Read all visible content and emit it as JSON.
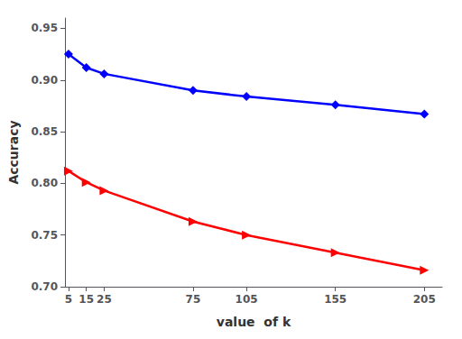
{
  "chart_data": {
    "type": "line",
    "x_label": "value  of k",
    "y_label": "Accuracy",
    "x": [
      5,
      15,
      25,
      75,
      105,
      155,
      205
    ],
    "series": [
      {
        "color": "#0000ff",
        "marker": "diamond",
        "values": [
          0.925,
          0.912,
          0.906,
          0.89,
          0.884,
          0.876,
          0.867
        ]
      },
      {
        "color": "#ff0000",
        "marker": "triangle-right",
        "values": [
          0.812,
          0.801,
          0.793,
          0.763,
          0.75,
          0.733,
          0.716
        ]
      }
    ],
    "xlim": [
      3,
      215
    ],
    "xticks": [
      5,
      15,
      25,
      75,
      105,
      155,
      205
    ],
    "ylim": [
      0.7,
      0.96
    ],
    "yticks": [
      {
        "value": 0.7,
        "label": "0.70"
      },
      0.75,
      {
        "value": 0.8,
        "label": "0.80"
      },
      0.85,
      {
        "value": 0.9,
        "label": "0.90"
      },
      0.95
    ],
    "grid": false
  }
}
